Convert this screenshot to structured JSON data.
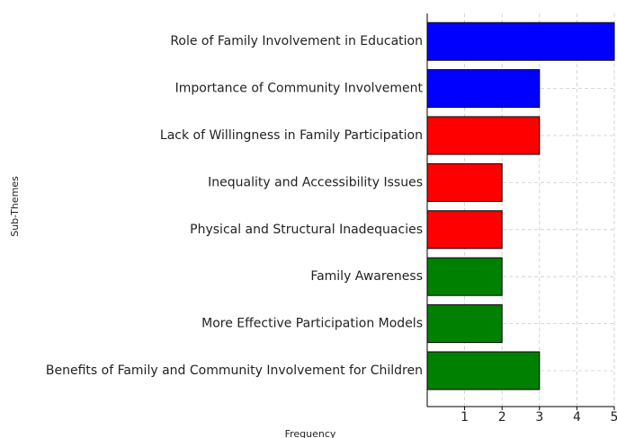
{
  "chart_data": {
    "type": "barh",
    "categories": [
      "Role of Family Involvement in Education",
      "Importance of Community Involvement",
      "Lack of Willingness in Family Participation",
      "Inequality and Accessibility Issues",
      "Physical and Structural Inadequacies",
      "Family Awareness",
      "More Effective Participation Models",
      "Benefits of Family and Community Involvement for Children"
    ],
    "values": [
      5,
      3,
      3,
      2,
      2,
      2,
      2,
      3
    ],
    "colors": [
      "#0000ff",
      "#0000ff",
      "#ff0000",
      "#ff0000",
      "#ff0000",
      "#008000",
      "#008000",
      "#008000"
    ],
    "xlim": [
      0,
      5
    ],
    "xticks": [
      1,
      2,
      3,
      4,
      5
    ],
    "grid": true,
    "xlabel": "Frequency",
    "ylabel": "Sub-Themes"
  }
}
